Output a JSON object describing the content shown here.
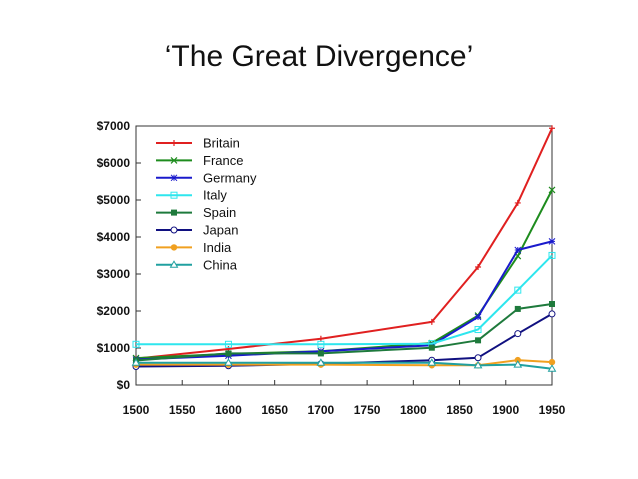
{
  "slide": {
    "title": "‘The Great Divergence’"
  },
  "chart_data": {
    "type": "line",
    "title": "",
    "xlabel": "",
    "ylabel": "",
    "xlim": [
      1500,
      1950
    ],
    "ylim": [
      0,
      7000
    ],
    "x_ticks": [
      1500,
      1550,
      1600,
      1650,
      1700,
      1750,
      1800,
      1850,
      1900,
      1950
    ],
    "y_ticks": [
      0,
      1000,
      2000,
      3000,
      4000,
      5000,
      6000,
      7000
    ],
    "y_tick_labels": [
      "$0",
      "$1000",
      "$2000",
      "$3000",
      "$4000",
      "$5000",
      "$6000",
      "$7000"
    ],
    "grid": false,
    "legend_position": "top-left",
    "series": [
      {
        "name": "Britain",
        "color": "#e02020",
        "marker": "plus",
        "x": [
          1500,
          1600,
          1700,
          1820,
          1870,
          1913,
          1950
        ],
        "y": [
          714,
          974,
          1250,
          1706,
          3190,
          4921,
          6939
        ]
      },
      {
        "name": "France",
        "color": "#1e8c1e",
        "marker": "x",
        "x": [
          1500,
          1600,
          1700,
          1820,
          1870,
          1913,
          1950
        ],
        "y": [
          727,
          841,
          910,
          1135,
          1876,
          3485,
          5271
        ]
      },
      {
        "name": "Germany",
        "color": "#1a1acc",
        "marker": "asterisk",
        "x": [
          1500,
          1600,
          1700,
          1820,
          1870,
          1913,
          1950
        ],
        "y": [
          688,
          791,
          910,
          1077,
          1839,
          3648,
          3881
        ]
      },
      {
        "name": "Italy",
        "color": "#2ee6ee",
        "marker": "square-open",
        "x": [
          1500,
          1600,
          1700,
          1820,
          1870,
          1913,
          1950
        ],
        "y": [
          1100,
          1100,
          1100,
          1117,
          1499,
          2564,
          3502
        ]
      },
      {
        "name": "Spain",
        "color": "#1e7a3c",
        "marker": "square-filled",
        "x": [
          1500,
          1600,
          1700,
          1820,
          1870,
          1913,
          1950
        ],
        "y": [
          661,
          853,
          853,
          1008,
          1207,
          2056,
          2189
        ]
      },
      {
        "name": "Japan",
        "color": "#101080",
        "marker": "circle-open",
        "x": [
          1500,
          1600,
          1700,
          1820,
          1870,
          1913,
          1950
        ],
        "y": [
          500,
          520,
          570,
          669,
          737,
          1387,
          1921
        ]
      },
      {
        "name": "India",
        "color": "#f0a020",
        "marker": "circle-filled",
        "x": [
          1500,
          1600,
          1700,
          1820,
          1870,
          1913,
          1950
        ],
        "y": [
          550,
          550,
          550,
          533,
          533,
          673,
          619
        ]
      },
      {
        "name": "China",
        "color": "#20a0a0",
        "marker": "triangle-open",
        "x": [
          1500,
          1600,
          1700,
          1820,
          1870,
          1913,
          1950
        ],
        "y": [
          600,
          600,
          600,
          600,
          530,
          552,
          439
        ]
      }
    ]
  }
}
